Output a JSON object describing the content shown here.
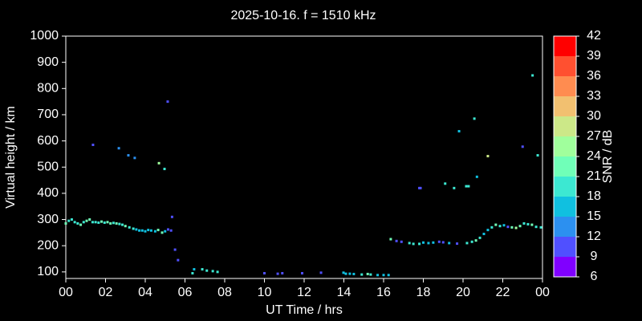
{
  "chart_data": {
    "type": "scatter",
    "title": "2025-10-16. f = 1510 kHz",
    "x_label": "UT Time / hrs",
    "y_label": "Virtual height / km",
    "xlim": [
      0,
      24
    ],
    "xticks": [
      {
        "value": 0,
        "label": "00"
      },
      {
        "value": 2,
        "label": "02"
      },
      {
        "value": 4,
        "label": "04"
      },
      {
        "value": 6,
        "label": "06"
      },
      {
        "value": 8,
        "label": "08"
      },
      10,
      12,
      14,
      16,
      18,
      20,
      22,
      {
        "value": 24,
        "label": "00"
      }
    ],
    "ylim": [
      75,
      1000
    ],
    "yticks": [
      100,
      200,
      300,
      400,
      500,
      600,
      700,
      800,
      900,
      1000
    ],
    "colorbar": {
      "label": "SNR / dB",
      "ticks": [
        6,
        9,
        12,
        15,
        18,
        21,
        24,
        27,
        30,
        33,
        36,
        39,
        42
      ],
      "colors": [
        "#8000ff",
        "#5050ff",
        "#2c90f0",
        "#10c0e0",
        "#3ce8d2",
        "#70ffb8",
        "#a0ff9c",
        "#cce888",
        "#f2c070",
        "#ff8c50",
        "#ff5030",
        "#ff0000"
      ]
    },
    "x": [
      0.0,
      0.15,
      0.3,
      0.45,
      0.6,
      0.75,
      0.9,
      1.05,
      1.2,
      1.35,
      1.5,
      1.65,
      1.8,
      1.95,
      2.1,
      2.25,
      2.4,
      2.55,
      2.7,
      2.85,
      3.0,
      3.2,
      3.4,
      3.55,
      3.7,
      3.85,
      4.0,
      4.15,
      4.3,
      4.5,
      4.65,
      4.85,
      5.0,
      5.15,
      5.3,
      5.35,
      5.5,
      5.65,
      1.37,
      2.67,
      3.15,
      3.47,
      4.69,
      4.97,
      5.13,
      6.38,
      6.46,
      6.87,
      7.1,
      7.4,
      7.64,
      10.0,
      10.67,
      10.9,
      11.9,
      12.85,
      13.98,
      14.1,
      14.3,
      14.5,
      14.9,
      15.2,
      15.35,
      15.7,
      16.0,
      16.25,
      16.36,
      16.65,
      16.9,
      17.3,
      17.5,
      17.8,
      18.0,
      18.26,
      18.5,
      18.8,
      19.0,
      19.3,
      19.7,
      20.2,
      20.45,
      20.65,
      20.85,
      21.05,
      21.25,
      21.45,
      21.65,
      21.86,
      22.06,
      22.26,
      22.46,
      22.67,
      22.87,
      23.07,
      23.27,
      23.47,
      23.68,
      23.92,
      17.8,
      17.86,
      19.1,
      19.55,
      19.8,
      20.16,
      20.28,
      20.57,
      20.7,
      21.25,
      23.0,
      23.5,
      23.76
    ],
    "y": [
      285,
      295,
      300,
      290,
      285,
      280,
      290,
      295,
      300,
      290,
      290,
      288,
      292,
      288,
      290,
      285,
      287,
      285,
      283,
      280,
      275,
      270,
      265,
      262,
      258,
      258,
      255,
      260,
      258,
      255,
      260,
      250,
      255,
      262,
      258,
      310,
      185,
      145,
      585,
      572,
      545,
      535,
      515,
      493,
      750,
      95,
      110,
      110,
      105,
      103,
      100,
      95,
      93,
      95,
      95,
      97,
      97,
      93,
      93,
      92,
      90,
      92,
      90,
      88,
      88,
      88,
      225,
      218,
      215,
      210,
      207,
      207,
      212,
      210,
      212,
      215,
      213,
      210,
      208,
      210,
      215,
      220,
      230,
      245,
      260,
      270,
      280,
      275,
      278,
      272,
      270,
      268,
      275,
      285,
      282,
      280,
      272,
      270,
      420,
      420,
      437,
      420,
      637,
      427,
      427,
      685,
      463,
      542,
      578,
      850,
      545
    ],
    "snr": [
      22,
      19,
      19,
      19,
      19,
      22,
      19,
      22,
      22,
      19,
      19,
      19,
      22,
      19,
      22,
      22,
      19,
      22,
      19,
      19,
      22,
      19,
      19,
      16,
      16,
      16,
      16,
      16,
      16,
      16,
      22,
      22,
      16,
      10,
      10,
      10,
      10,
      10,
      10,
      13,
      13,
      13,
      25,
      19,
      10,
      19,
      16,
      19,
      19,
      19,
      19,
      10,
      10,
      10,
      10,
      10,
      16,
      16,
      16,
      16,
      19,
      22,
      19,
      16,
      16,
      16,
      22,
      10,
      10,
      19,
      19,
      19,
      16,
      16,
      16,
      10,
      10,
      16,
      10,
      19,
      19,
      22,
      19,
      16,
      16,
      19,
      22,
      19,
      16,
      10,
      22,
      25,
      22,
      19,
      19,
      22,
      19,
      19,
      10,
      10,
      19,
      19,
      16,
      19,
      19,
      19,
      16,
      28,
      10,
      19,
      19
    ]
  }
}
